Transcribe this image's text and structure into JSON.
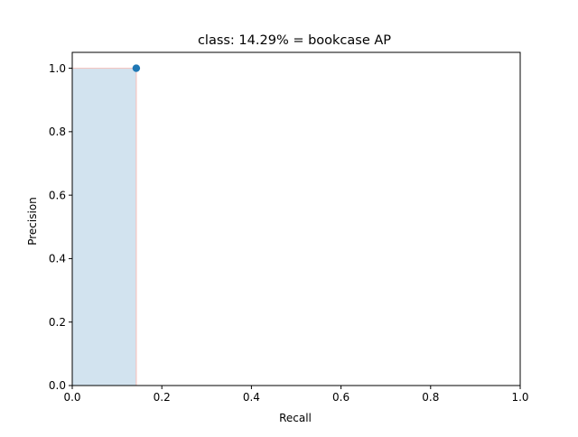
{
  "chart_data": {
    "type": "area",
    "title": "class: 14.29% = bookcase AP",
    "xlabel": "Recall",
    "ylabel": "Precision",
    "xlim": [
      0.0,
      1.0
    ],
    "ylim": [
      0.0,
      1.05
    ],
    "xticks": [
      "0.0",
      "0.2",
      "0.4",
      "0.6",
      "0.8",
      "1.0"
    ],
    "yticks": [
      "0.0",
      "0.2",
      "0.4",
      "0.6",
      "0.8",
      "1.0"
    ],
    "grid": false,
    "series": [
      {
        "kind": "area",
        "x": [
          0.0,
          0.1429,
          0.1429
        ],
        "y": [
          1.0,
          1.0,
          0.0
        ],
        "fill_color": "#d2e3ef",
        "edge_color": "#f4c6c2"
      },
      {
        "kind": "scatter",
        "x": [
          0.1429
        ],
        "y": [
          1.0
        ],
        "color": "#1f77b4"
      }
    ]
  }
}
